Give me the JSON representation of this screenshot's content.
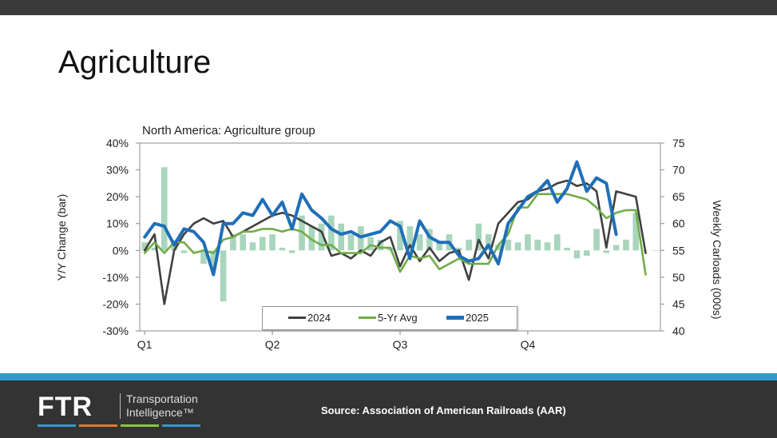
{
  "page": {
    "title": "Agriculture",
    "source": "Source: Association of American Railroads (AAR)"
  },
  "logo": {
    "mark": "FTR",
    "line1": "Transportation",
    "line2": "Intelligence™",
    "stripe_colors": [
      "#3399cc",
      "#e07b2a",
      "#8dc63f",
      "#3399cc"
    ]
  },
  "colors": {
    "topbar": "#3a3a3a",
    "accent": "#3399cc",
    "footer": "#333333",
    "bars": "#a8d5bc",
    "s2024": "#404040",
    "s5yr": "#70ad47",
    "s2025": "#1f6fb8"
  },
  "chart_data": {
    "type": "bar+line",
    "title": "North America: Agriculture group",
    "ylabel_left": "Y/Y Change (bar)",
    "ylabel_right": "Weekly Carloads (000s)",
    "ylim_left": [
      -30,
      40
    ],
    "ylim_right": [
      40,
      75
    ],
    "left_ticks": [
      "40%",
      "30%",
      "20%",
      "10%",
      "0%",
      "-10%",
      "-20%",
      "-30%"
    ],
    "right_ticks": [
      "75",
      "70",
      "65",
      "60",
      "55",
      "50",
      "45",
      "40"
    ],
    "x_ticks": [
      {
        "label": "Q1",
        "week": 1
      },
      {
        "label": "Q2",
        "week": 14
      },
      {
        "label": "Q3",
        "week": 27
      },
      {
        "label": "Q4",
        "week": 40
      }
    ],
    "weeks": 53,
    "bars_yoy_pct": [
      3,
      1,
      31,
      4,
      -1,
      0,
      -5,
      -7,
      -19,
      6,
      6,
      3,
      5,
      6,
      1,
      -1,
      13,
      9,
      10,
      13,
      10,
      6,
      9,
      5,
      4,
      1,
      11,
      9,
      6,
      8,
      3,
      6,
      1,
      4,
      10,
      6,
      2,
      4,
      3,
      6,
      4,
      3,
      6,
      1,
      -3,
      -2,
      8,
      -1,
      2,
      4,
      14,
      0,
      0
    ],
    "series": [
      {
        "name": "2024",
        "values": [
          55,
          58,
          45,
          55,
          58,
          60,
          61,
          60,
          60.5,
          57.5,
          58.5,
          59.5,
          60.5,
          61.5,
          62,
          61.5,
          60.5,
          59.5,
          58.5,
          54,
          54.5,
          53.5,
          55,
          54,
          56.5,
          57.5,
          52,
          56,
          53,
          55.5,
          53,
          54.5,
          55,
          49.5,
          57,
          53.5,
          60,
          62,
          64,
          64.5,
          66,
          66.5,
          67.5,
          68,
          67,
          67.5,
          66,
          55.5,
          66,
          65.5,
          65,
          54.5
        ]
      },
      {
        "name": "5-Yr Avg",
        "values": [
          54.5,
          56.5,
          54.5,
          56.5,
          56.5,
          54.5,
          55,
          54.5,
          57,
          57.5,
          58.5,
          58.5,
          59,
          59,
          58.5,
          59,
          58.5,
          57,
          56,
          56,
          54.5,
          54.5,
          54.5,
          56,
          55.5,
          55.5,
          51,
          54,
          53.5,
          54,
          51.5,
          52.5,
          53.5,
          52.5,
          52.5,
          52.5,
          56,
          58,
          63,
          63,
          65.5,
          65.5,
          65.5,
          65.5,
          65,
          64.5,
          63,
          61,
          62,
          62.5,
          62.5,
          50.5
        ]
      },
      {
        "name": "2025",
        "values": [
          57.5,
          60,
          59.5,
          56,
          59,
          58.5,
          56.5,
          50.5,
          60,
          60,
          62,
          61.5,
          64.5,
          61.5,
          64,
          59,
          65.5,
          62.5,
          61,
          59,
          58,
          58.5,
          57.5,
          58,
          58.5,
          60.5,
          59.5,
          53.5,
          60.5,
          57.5,
          56.5,
          56.5,
          54,
          53,
          53.5,
          56,
          52.5,
          60,
          62.5,
          65,
          66,
          68,
          64,
          66.5,
          71.5,
          66,
          68.5,
          67.5,
          58
        ]
      }
    ]
  }
}
